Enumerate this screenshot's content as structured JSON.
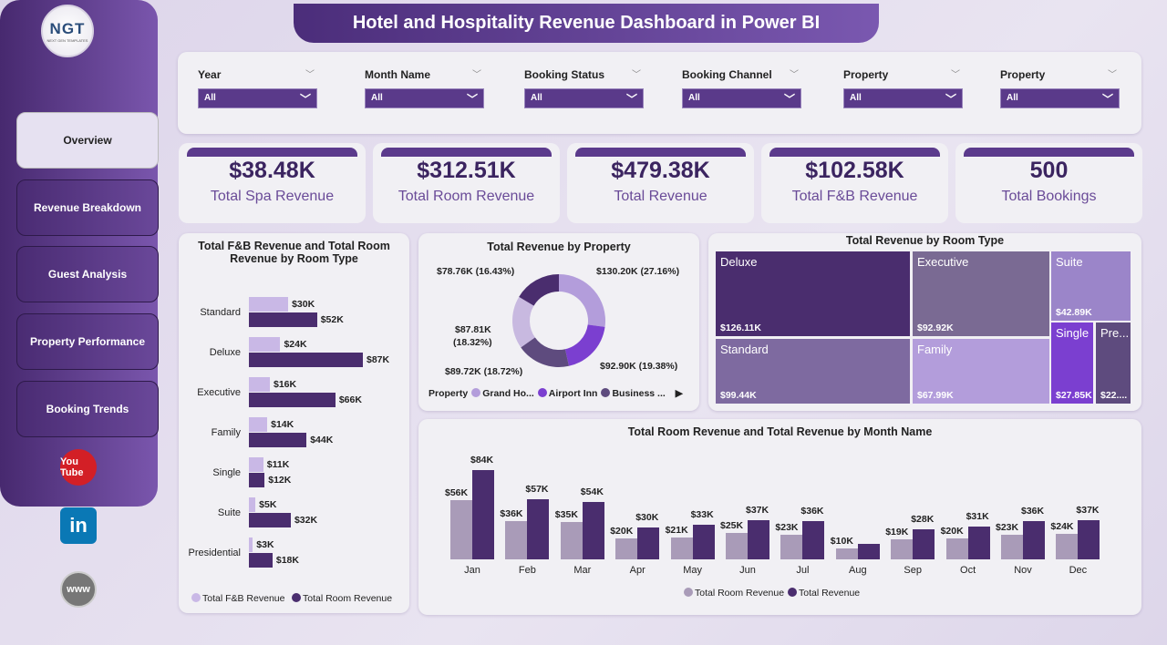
{
  "logo": {
    "text": "NGT",
    "sub": "NEXT GEN TEMPLATES"
  },
  "title": "Hotel and Hospitality Revenue Dashboard in Power BI",
  "nav": [
    {
      "label": "Overview",
      "active": true
    },
    {
      "label": "Revenue Breakdown"
    },
    {
      "label": "Guest Analysis"
    },
    {
      "label": "Property Performance"
    },
    {
      "label": "Booking Trends"
    }
  ],
  "social": [
    {
      "icon": "youtube-icon",
      "text": "You Tube"
    },
    {
      "icon": "linkedin-icon",
      "text": "in"
    },
    {
      "icon": "globe-icon",
      "text": "www"
    }
  ],
  "filters": [
    {
      "label": "Year",
      "value": "All"
    },
    {
      "label": "Month Name",
      "value": "All"
    },
    {
      "label": "Booking Status",
      "value": "All"
    },
    {
      "label": "Booking Channel",
      "value": "All"
    },
    {
      "label": "Property",
      "value": "All"
    },
    {
      "label": "Property",
      "value": "All"
    }
  ],
  "kpis": [
    {
      "value": "$38.48K",
      "label": "Total Spa Revenue"
    },
    {
      "value": "$312.51K",
      "label": "Total Room Revenue"
    },
    {
      "value": "$479.38K",
      "label": "Total Revenue"
    },
    {
      "value": "$102.58K",
      "label": "Total F&B Revenue"
    },
    {
      "value": "500",
      "label": "Total Bookings"
    }
  ],
  "colors": {
    "accent": "#4b2d7a",
    "light": "#b39ddb",
    "gray": "#a99bb8"
  },
  "chart_data": [
    {
      "type": "bar",
      "orientation": "horizontal",
      "title": "Total F&B Revenue and Total Room Revenue by Room Type",
      "categories": [
        "Standard",
        "Deluxe",
        "Executive",
        "Family",
        "Single",
        "Suite",
        "Presidential"
      ],
      "series": [
        {
          "name": "Total F&B Revenue",
          "values": [
            30,
            24,
            16,
            14,
            11,
            5,
            3
          ],
          "labels": [
            "$30K",
            "$24K",
            "$16K",
            "$14K",
            "$11K",
            "$5K",
            "$3K"
          ],
          "color": "#c9b8e6"
        },
        {
          "name": "Total Room Revenue",
          "values": [
            52,
            87,
            66,
            44,
            12,
            32,
            18
          ],
          "labels": [
            "$52K",
            "$87K",
            "$66K",
            "$44K",
            "$12K",
            "$32K",
            "$18K"
          ],
          "color": "#4a2d6e"
        }
      ]
    },
    {
      "type": "pie",
      "donut": true,
      "title": "Total Revenue by Property",
      "legend_title": "Property",
      "legend": [
        "Grand Ho...",
        "Airport Inn",
        "Business ..."
      ],
      "slices": [
        {
          "value": 130.2,
          "label": "$130.20K (27.16%)",
          "color": "#b39ddb"
        },
        {
          "value": 92.9,
          "label": "$92.90K (19.38%)",
          "color": "#7b3fd0"
        },
        {
          "value": 89.72,
          "label": "$89.72K (18.72%)",
          "color": "#5e4b7e"
        },
        {
          "value": 87.81,
          "label": "$87.81K",
          "label2": "(18.32%)",
          "color": "#c8b9e0"
        },
        {
          "value": 78.76,
          "label": "$78.76K (16.43%)",
          "color": "#4a2d6e"
        }
      ]
    },
    {
      "type": "treemap",
      "title": "Total Revenue by Room Type",
      "cells": [
        {
          "name": "Deluxe",
          "label": "$126.11K",
          "color": "#4a2d6e"
        },
        {
          "name": "Standard",
          "label": "$99.44K",
          "color": "#7e6aa0"
        },
        {
          "name": "Executive",
          "label": "$92.92K",
          "color": "#7a6a93"
        },
        {
          "name": "Family",
          "label": "$67.99K",
          "color": "#b39ddb"
        },
        {
          "name": "Suite",
          "label": "$42.89K",
          "color": "#9b85c9"
        },
        {
          "name": "Single",
          "label": "$27.85K",
          "color": "#7b3fd0"
        },
        {
          "name": "Pre...",
          "label": "$22....",
          "color": "#5e4b7e"
        }
      ]
    },
    {
      "type": "bar",
      "title": "Total Room Revenue and Total Revenue by Month Name",
      "categories": [
        "Jan",
        "Feb",
        "Mar",
        "Apr",
        "May",
        "Jun",
        "Jul",
        "Aug",
        "Sep",
        "Oct",
        "Nov",
        "Dec"
      ],
      "series": [
        {
          "name": "Total Room Revenue",
          "values": [
            56,
            36,
            35,
            20,
            21,
            25,
            23,
            10,
            19,
            20,
            23,
            24
          ],
          "color": "#a99bb8"
        },
        {
          "name": "Total Revenue",
          "values": [
            84,
            57,
            54,
            30,
            33,
            37,
            36,
            0,
            28,
            31,
            36,
            37
          ],
          "color": "#4a2d6e"
        }
      ],
      "unit_prefix": "$",
      "unit_suffix": "K"
    }
  ]
}
